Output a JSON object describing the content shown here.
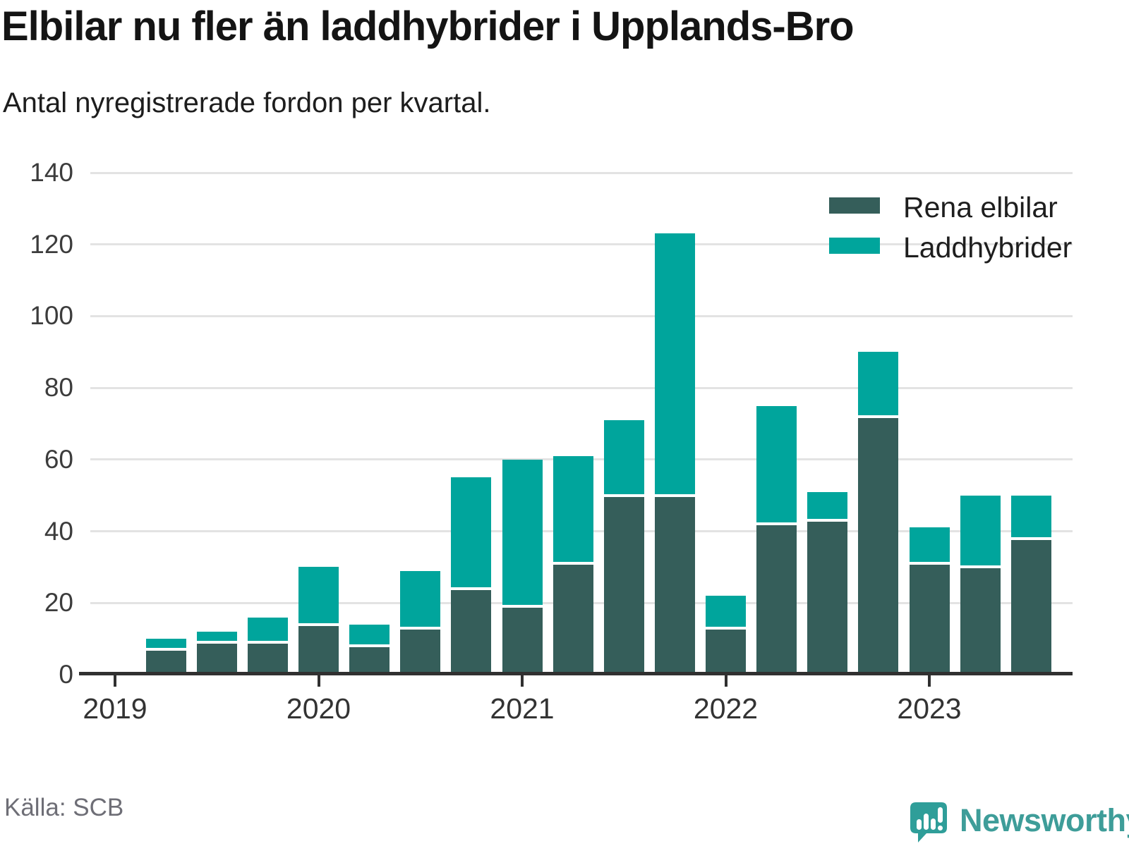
{
  "header": {
    "title": "Elbilar nu fler än laddhybrider i Upplands-Bro",
    "subtitle": "Antal nyregistrerade fordon per kvartal."
  },
  "colors": {
    "rena_elbilar": "#355e5a",
    "laddhybrider": "#00a59c",
    "gridline": "#e3e3e3",
    "axis": "#303030",
    "brand_teal": "#3e9d99"
  },
  "chart_data": {
    "type": "bar",
    "stacked": true,
    "title": "Elbilar nu fler än laddhybrider i Upplands-Bro",
    "subtitle": "Antal nyregistrerade fordon per kvartal.",
    "x": [
      "2019 Q2",
      "2019 Q3",
      "2019 Q4",
      "2020 Q1",
      "2020 Q2",
      "2020 Q3",
      "2020 Q4",
      "2021 Q1",
      "2021 Q2",
      "2021 Q3",
      "2021 Q4",
      "2022 Q1",
      "2022 Q2",
      "2022 Q3",
      "2022 Q4",
      "2023 Q1",
      "2023 Q2",
      "2023 Q3"
    ],
    "series": [
      {
        "name": "Rena elbilar",
        "color": "#355e5a",
        "values": [
          7,
          9,
          9,
          14,
          8,
          13,
          24,
          19,
          31,
          50,
          50,
          13,
          42,
          43,
          72,
          31,
          30,
          38
        ]
      },
      {
        "name": "Laddhybrider",
        "color": "#00a59c",
        "values": [
          3,
          3,
          7,
          16,
          6,
          16,
          31,
          41,
          30,
          21,
          73,
          9,
          33,
          8,
          18,
          10,
          20,
          12
        ]
      }
    ],
    "totals": [
      10,
      12,
      16,
      30,
      14,
      29,
      55,
      60,
      61,
      71,
      123,
      22,
      75,
      51,
      90,
      41,
      50,
      50
    ],
    "ylim": [
      0,
      140
    ],
    "yticks": [
      0,
      20,
      40,
      60,
      80,
      100,
      120,
      140
    ],
    "year_ticks": [
      "2019",
      "2020",
      "2021",
      "2022",
      "2023"
    ],
    "grid": true,
    "legend_position": "top-right"
  },
  "legend": {
    "items": [
      {
        "label": "Rena elbilar"
      },
      {
        "label": "Laddhybrider"
      }
    ]
  },
  "footer": {
    "source": "Källa: SCB",
    "brand": "Newsworthy"
  }
}
